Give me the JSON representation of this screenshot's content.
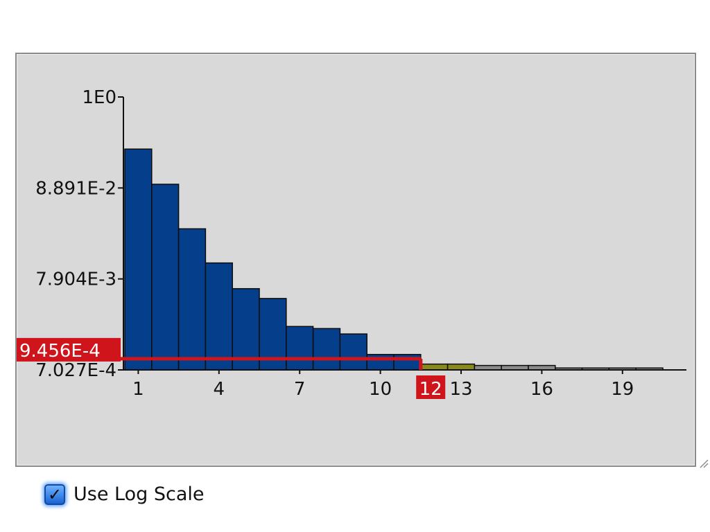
{
  "chart_data": {
    "type": "bar",
    "scale": "log",
    "x": [
      1,
      2,
      3,
      4,
      5,
      6,
      7,
      8,
      9,
      10,
      11,
      12,
      13,
      14,
      15,
      16,
      17,
      18,
      19,
      20
    ],
    "values": [
      0.25,
      0.098,
      0.03,
      0.0121,
      0.0061,
      0.0047,
      0.00223,
      0.00211,
      0.00183,
      0.00106,
      0.00106,
      0.00082,
      0.00082,
      0.00079,
      0.00079,
      0.00079,
      0.00074,
      0.00074,
      0.00074,
      0.00074
    ],
    "bar_colors": [
      "#053f8c",
      "#053f8c",
      "#053f8c",
      "#053f8c",
      "#053f8c",
      "#053f8c",
      "#053f8c",
      "#053f8c",
      "#053f8c",
      "#053f8c",
      "#053f8c",
      "#8a8a1c",
      "#8a8a1c",
      "#8c8c8c",
      "#8c8c8c",
      "#8c8c8c",
      "#8c8c8c",
      "#8c8c8c",
      "#8c8c8c",
      "#8c8c8c"
    ],
    "y_ticks": [
      {
        "value": 1,
        "label": "1E0"
      },
      {
        "value": 0.08891,
        "label": "8.891E-2"
      },
      {
        "value": 0.007904,
        "label": "7.904E-3"
      },
      {
        "value": 0.0007027,
        "label": "7.027E-4"
      }
    ],
    "x_ticks": [
      {
        "value": 1,
        "label": "1"
      },
      {
        "value": 4,
        "label": "4"
      },
      {
        "value": 7,
        "label": "7"
      },
      {
        "value": 10,
        "label": "10"
      },
      {
        "value": 13,
        "label": "13"
      },
      {
        "value": 16,
        "label": "16"
      },
      {
        "value": 19,
        "label": "19"
      }
    ],
    "ylim": [
      0.0007027,
      1
    ],
    "threshold": {
      "y_value": 0.0009456,
      "y_label": "9.456E-4",
      "x_value": 12,
      "x_label": "12"
    },
    "colors": {
      "bar": "#053f8c",
      "selected": "#8a8a1c",
      "below": "#8c8c8c",
      "marker": "#d0141c"
    }
  },
  "controls": {
    "log_scale_label": "Use Log Scale",
    "log_scale_checked": true
  }
}
